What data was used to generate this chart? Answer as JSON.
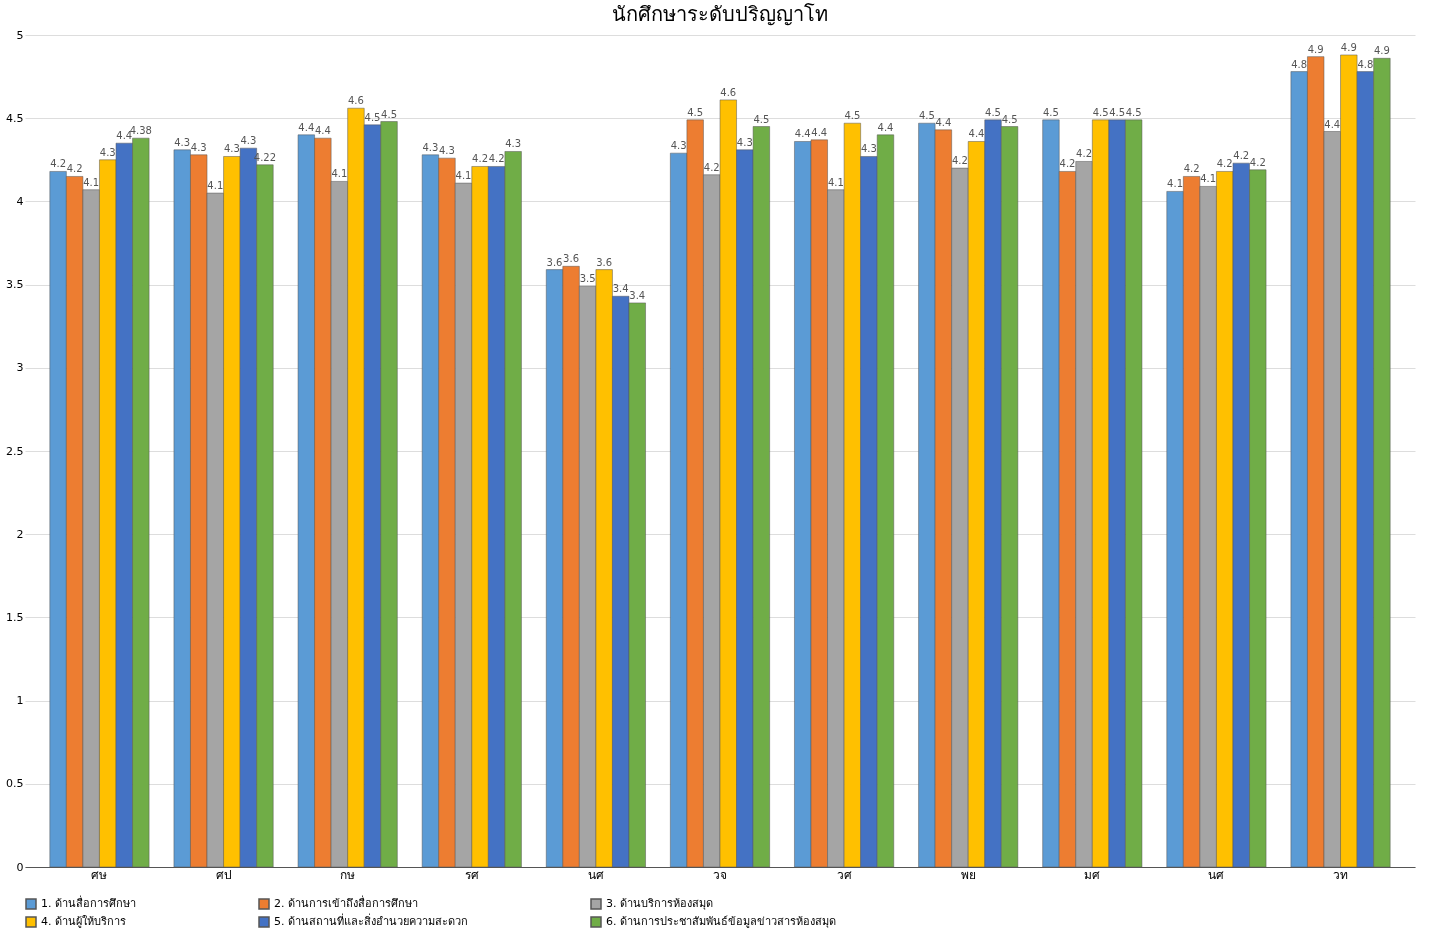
{
  "chart_data": {
    "type": "bar",
    "title": "นักศึกษาระดับปริญญาโท",
    "categories": [
      "ศษ",
      "ศป",
      "กษ",
      "รศ",
      "นศ",
      "วจ",
      "วศ",
      "พย",
      "มศ",
      "นศ",
      "วท"
    ],
    "series": [
      {
        "name": "1. ด้านสื่อการศึกษา",
        "color": "#5b9bd5",
        "values": [
          4.18,
          4.31,
          4.4,
          4.28,
          3.59,
          4.29,
          4.36,
          4.47,
          4.49,
          4.06,
          4.78
        ],
        "value_labels": [
          "4.2",
          "4.3",
          "4.4",
          "4.3",
          "3.6",
          "4.3",
          "4.4",
          "4.5",
          "4.5",
          "4.1",
          "4.8"
        ]
      },
      {
        "name": "2. ด้านการเข้าถึงสื่อการศึกษา",
        "color": "#ed7d31",
        "values": [
          4.15,
          4.28,
          4.38,
          4.26,
          3.61,
          4.49,
          4.37,
          4.43,
          4.18,
          4.15,
          4.87
        ],
        "value_labels": [
          "4.2",
          "4.3",
          "4.4",
          "4.3",
          "3.6",
          "4.5",
          "4.4",
          "4.4",
          "4.2",
          "4.2",
          "4.9"
        ]
      },
      {
        "name": "3. ด้านบริการห้องสมุด",
        "color": "#a5a5a5",
        "values": [
          4.07,
          4.05,
          4.12,
          4.11,
          3.49,
          4.16,
          4.07,
          4.2,
          4.24,
          4.09,
          4.42
        ],
        "value_labels": [
          "4.1",
          "4.1",
          "4.1",
          "4.1",
          "3.5",
          "4.2",
          "4.1",
          "4.2",
          "4.2",
          "4.1",
          "4.4"
        ]
      },
      {
        "name": "4. ด้านผู้ให้บริการ",
        "color": "#ffc000",
        "values": [
          4.25,
          4.27,
          4.56,
          4.21,
          3.59,
          4.61,
          4.47,
          4.36,
          4.49,
          4.18,
          4.88
        ],
        "value_labels": [
          "4.3",
          "4.3",
          "4.6",
          "4.2",
          "3.6",
          "4.6",
          "4.5",
          "4.4",
          "4.5",
          "4.2",
          "4.9"
        ]
      },
      {
        "name": "5. ด้านสถานที่และสิ่งอำนวยความสะดวก",
        "color": "#4472c4",
        "values": [
          4.35,
          4.32,
          4.46,
          4.21,
          3.43,
          4.31,
          4.27,
          4.49,
          4.49,
          4.23,
          4.78
        ],
        "value_labels": [
          "4.4",
          "4.3",
          "4.5",
          "4.2",
          "3.4",
          "4.3",
          "4.3",
          "4.5",
          "4.5",
          "4.2",
          "4.8"
        ]
      },
      {
        "name": "6. ด้านการประชาสัมพันธ์ข้อมูลข่าวสารห้องสมุด",
        "color": "#70ad47",
        "values": [
          4.38,
          4.22,
          4.48,
          4.3,
          3.39,
          4.45,
          4.4,
          4.45,
          4.49,
          4.19,
          4.86
        ],
        "value_labels": [
          "4.38",
          "4.22",
          "4.5",
          "4.3",
          "3.4",
          "4.5",
          "4.4",
          "4.5",
          "4.5",
          "4.2",
          "4.9"
        ]
      }
    ],
    "ylim": [
      0,
      5
    ],
    "yticks": [
      0,
      0.5,
      1,
      1.5,
      2,
      2.5,
      3,
      3.5,
      4,
      4.5,
      5
    ],
    "grid": "y",
    "legend": "bottom"
  }
}
